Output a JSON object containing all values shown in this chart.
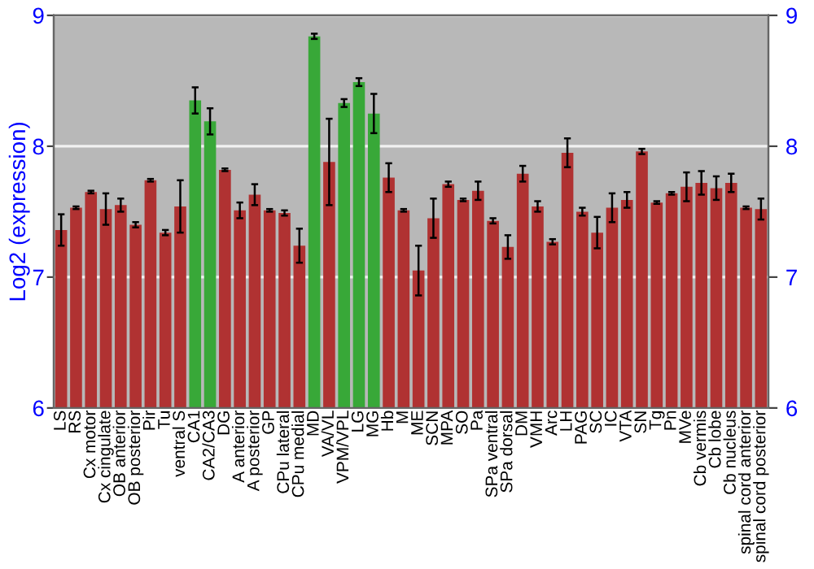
{
  "chart_data": {
    "type": "bar",
    "ylabel": "Log2 (expression)",
    "categories": [
      "LS",
      "RS",
      "Cx motor",
      "Cx cingulate",
      "OB anterior",
      "OB posterior",
      "Pir",
      "Tu",
      "ventral S",
      "CA1",
      "CA2/CA3",
      "DG",
      "A anterior",
      "A posterior",
      "GP",
      "CPu lateral",
      "CPu medial",
      "MD",
      "VA/VL",
      "VPM/VPL",
      "LG",
      "MG",
      "Hb",
      "M",
      "ME",
      "SCN",
      "MPA",
      "SO",
      "Pa",
      "SPa ventral",
      "SPa dorsal",
      "DM",
      "VMH",
      "Arc",
      "LH",
      "PAG",
      "SC",
      "IC",
      "VTA",
      "SN",
      "Tg",
      "Pn",
      "MVe",
      "Cb vermis",
      "Cb lobe",
      "Cb nucleus",
      "spinal cord anterior",
      "spinal cord posterior"
    ],
    "values": [
      7.36,
      7.53,
      7.65,
      7.52,
      7.55,
      7.4,
      7.74,
      7.34,
      7.54,
      8.35,
      8.19,
      7.82,
      7.51,
      7.63,
      7.51,
      7.49,
      7.24,
      8.84,
      7.88,
      8.33,
      8.49,
      8.25,
      7.76,
      7.51,
      7.05,
      7.45,
      7.71,
      7.59,
      7.66,
      7.43,
      7.23,
      7.79,
      7.54,
      7.27,
      7.95,
      7.5,
      7.34,
      7.53,
      7.59,
      7.96,
      7.57,
      7.64,
      7.69,
      7.72,
      7.68,
      7.72,
      7.53,
      7.52
    ],
    "errors": [
      0.12,
      0.01,
      0.01,
      0.12,
      0.05,
      0.02,
      0.01,
      0.02,
      0.2,
      0.1,
      0.1,
      0.01,
      0.06,
      0.08,
      0.01,
      0.02,
      0.13,
      0.02,
      0.33,
      0.03,
      0.03,
      0.15,
      0.11,
      0.01,
      0.19,
      0.15,
      0.02,
      0.01,
      0.07,
      0.02,
      0.09,
      0.06,
      0.04,
      0.02,
      0.11,
      0.03,
      0.12,
      0.11,
      0.06,
      0.02,
      0.01,
      0.01,
      0.11,
      0.09,
      0.09,
      0.07,
      0.01,
      0.08
    ],
    "colors": [
      "#b03232",
      "#b03232",
      "#b03232",
      "#b03232",
      "#b03232",
      "#b03232",
      "#b03232",
      "#b03232",
      "#b03232",
      "#38a838",
      "#38a838",
      "#b03232",
      "#b03232",
      "#b03232",
      "#b03232",
      "#b03232",
      "#b03232",
      "#38a838",
      "#b03232",
      "#38a838",
      "#38a838",
      "#38a838",
      "#b03232",
      "#b03232",
      "#b03232",
      "#b03232",
      "#b03232",
      "#b03232",
      "#b03232",
      "#b03232",
      "#b03232",
      "#b03232",
      "#b03232",
      "#b03232",
      "#b03232",
      "#b03232",
      "#b03232",
      "#b03232",
      "#b03232",
      "#b03232",
      "#b03232",
      "#b03232",
      "#b03232",
      "#b03232",
      "#b03232",
      "#b03232",
      "#b03232",
      "#b03232"
    ],
    "ylim": [
      6,
      9
    ],
    "yticks": [
      6,
      7,
      8,
      9
    ],
    "y2lim": [
      6,
      9
    ],
    "y2ticks": [
      6,
      7,
      8,
      9
    ],
    "grid": "y"
  }
}
